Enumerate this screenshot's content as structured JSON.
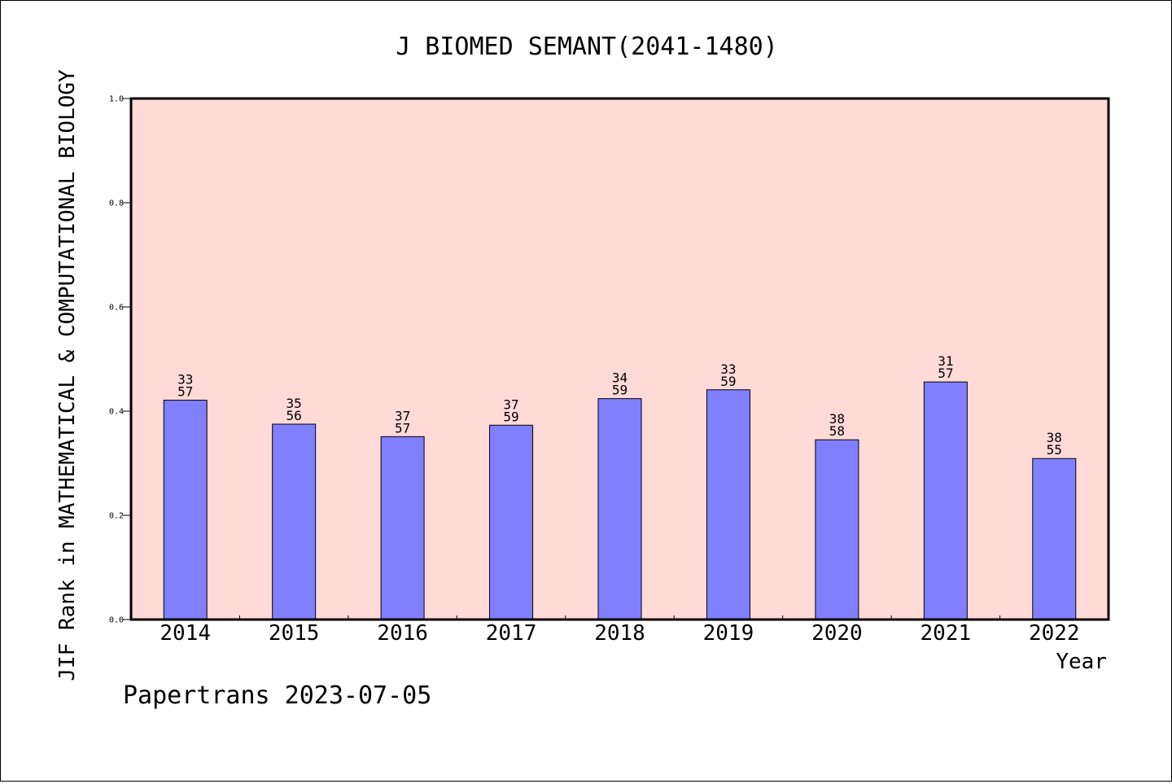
{
  "chart_data": {
    "type": "bar",
    "title": "J BIOMED SEMANT(2041-1480)",
    "xlabel": "Year",
    "ylabel": "JIF Rank in MATHEMATICAL & COMPUTATIONAL BIOLOGY",
    "categories": [
      "2014",
      "2015",
      "2016",
      "2017",
      "2018",
      "2019",
      "2020",
      "2021",
      "2022"
    ],
    "values": [
      0.421,
      0.375,
      0.351,
      0.373,
      0.424,
      0.441,
      0.345,
      0.456,
      0.309
    ],
    "rank_labels": [
      [
        "33",
        "57"
      ],
      [
        "35",
        "56"
      ],
      [
        "37",
        "57"
      ],
      [
        "37",
        "59"
      ],
      [
        "34",
        "59"
      ],
      [
        "33",
        "59"
      ],
      [
        "38",
        "58"
      ],
      [
        "31",
        "57"
      ],
      [
        "38",
        "55"
      ]
    ],
    "ylim": [
      0,
      1.0
    ],
    "yticks": [
      "0.0",
      "0.2",
      "0.4",
      "0.6",
      "0.8",
      "1.0"
    ],
    "grid": false,
    "legend": "none",
    "colors": {
      "bar": "#8080ff",
      "plot_background": "#ffdad7",
      "axes": "#000000"
    }
  },
  "footer": {
    "credit": "Papertrans 2023-07-05"
  }
}
